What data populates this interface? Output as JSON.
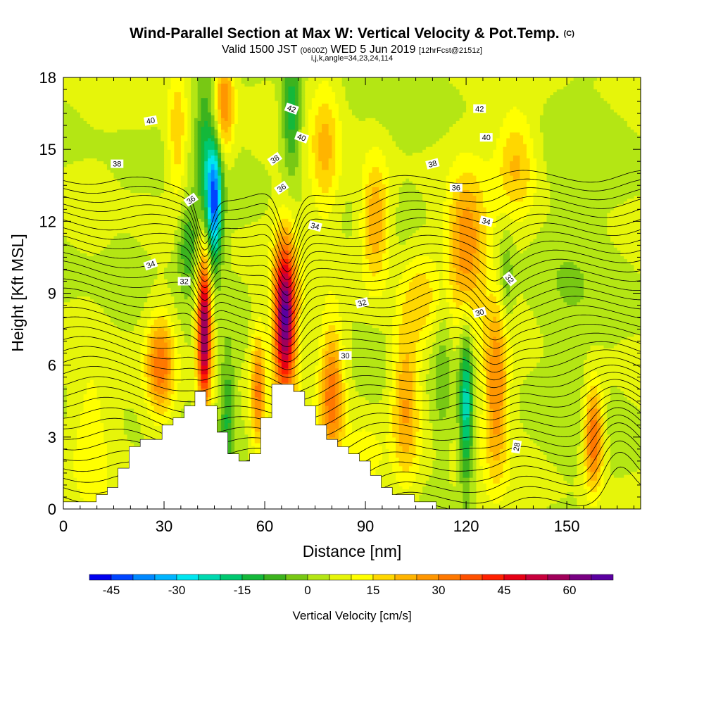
{
  "title": {
    "main": "Wind-Parallel Section at Max W: Vertical Velocity & Pot.Temp.",
    "copyright": "(C)",
    "valid_prefix": "Valid 1500 JST",
    "valid_utc": "(0600Z)",
    "valid_date": "WED 5 Jun 2019",
    "forecast": "[12hrFcst@2151z]",
    "indices": "i,j,k,angle=34,23,24,114"
  },
  "chart_data": {
    "type": "heatmap",
    "xlabel": "Distance [nm]",
    "ylabel": "Height [Kft MSL]",
    "xlim": [
      0,
      172
    ],
    "ylim": [
      0,
      18
    ],
    "x_ticks": [
      0,
      30,
      60,
      90,
      120,
      150
    ],
    "y_ticks": [
      0,
      3,
      6,
      9,
      12,
      15,
      18
    ],
    "fill_field": "Vertical Velocity [cm/s]",
    "contour_field": "Potential Temperature",
    "colorbar": {
      "label": "Vertical Velocity [cm/s]",
      "min": -50,
      "max": 70,
      "step": 5,
      "tick_labels": [
        -45,
        -30,
        -15,
        0,
        15,
        30,
        45,
        60
      ],
      "colors": [
        "#0000ee",
        "#0044ff",
        "#0088ff",
        "#00b4ff",
        "#00e6f0",
        "#00d9b0",
        "#00c870",
        "#14b83a",
        "#3cb31e",
        "#78c814",
        "#b4e614",
        "#e6f50a",
        "#ffff00",
        "#ffd700",
        "#ffb400",
        "#ff9600",
        "#ff7800",
        "#ff5000",
        "#ff2000",
        "#e60014",
        "#c8003c",
        "#a0005a",
        "#780082",
        "#5a00a0"
      ]
    },
    "cells": [
      {
        "x": 42,
        "y": 7.5,
        "sx": 1.5,
        "sy": 2.2,
        "v": 60
      },
      {
        "x": 66,
        "y": 8.0,
        "sx": 2.3,
        "sy": 2.2,
        "v": 62
      },
      {
        "x": 29,
        "y": 6.0,
        "sx": 3.0,
        "sy": 1.5,
        "v": 28
      },
      {
        "x": 58,
        "y": 5.0,
        "sx": 1.5,
        "sy": 1.8,
        "v": 25
      },
      {
        "x": 80,
        "y": 4.8,
        "sx": 2.5,
        "sy": 2.0,
        "v": 28
      },
      {
        "x": 102,
        "y": 4.5,
        "sx": 3.0,
        "sy": 2.5,
        "v": 22
      },
      {
        "x": 93,
        "y": 12.0,
        "sx": 3.0,
        "sy": 1.8,
        "v": 22
      },
      {
        "x": 120,
        "y": 11.0,
        "sx": 4.0,
        "sy": 2.0,
        "v": 25
      },
      {
        "x": 129,
        "y": 5.0,
        "sx": 2.5,
        "sy": 2.5,
        "v": 25
      },
      {
        "x": 158,
        "y": 3.0,
        "sx": 2.0,
        "sy": 1.5,
        "v": 33
      },
      {
        "x": 48,
        "y": 17.0,
        "sx": 2.0,
        "sy": 1.5,
        "v": 25
      },
      {
        "x": 34,
        "y": 15.5,
        "sx": 2.0,
        "sy": 2.0,
        "v": 15
      },
      {
        "x": 78,
        "y": 15.0,
        "sx": 3.0,
        "sy": 2.0,
        "v": 15
      },
      {
        "x": 135,
        "y": 14.5,
        "sx": 4.0,
        "sy": 1.5,
        "v": 15
      },
      {
        "x": 45,
        "y": 12.8,
        "sx": 1.6,
        "sy": 1.8,
        "v": -45
      },
      {
        "x": 42,
        "y": 15.0,
        "sx": 1.8,
        "sy": 2.5,
        "v": -15
      },
      {
        "x": 37,
        "y": 11.0,
        "sx": 2.0,
        "sy": 1.2,
        "v": -15
      },
      {
        "x": 49,
        "y": 4.0,
        "sx": 1.5,
        "sy": 1.8,
        "v": -15
      },
      {
        "x": 68,
        "y": 16.5,
        "sx": 2.0,
        "sy": 1.8,
        "v": -20
      },
      {
        "x": 120,
        "y": 4.2,
        "sx": 1.4,
        "sy": 2.3,
        "v": -28
      },
      {
        "x": 113,
        "y": 6.0,
        "sx": 2.0,
        "sy": 2.5,
        "v": -8
      },
      {
        "x": 132,
        "y": 9.5,
        "sx": 1.5,
        "sy": 1.5,
        "v": -10
      },
      {
        "x": 18,
        "y": 10.0,
        "sx": 5.0,
        "sy": 3.0,
        "v": -3
      },
      {
        "x": 150,
        "y": 9.0,
        "sx": 6.0,
        "sy": 3.5,
        "v": -3
      },
      {
        "x": 8,
        "y": 3.0,
        "sx": 4.0,
        "sy": 2.0,
        "v": 8
      },
      {
        "x": 90,
        "y": 2.0,
        "sx": 4.0,
        "sy": 1.0,
        "v": 10
      },
      {
        "x": 107,
        "y": 9.0,
        "sx": 4.0,
        "sy": 1.5,
        "v": 12
      }
    ],
    "terrain": [
      [
        0,
        0.3
      ],
      [
        9.8,
        0.3
      ],
      [
        9.8,
        0.6
      ],
      [
        13.1,
        0.6
      ],
      [
        13.1,
        0.9
      ],
      [
        16.3,
        0.9
      ],
      [
        16.3,
        1.7
      ],
      [
        19.6,
        1.7
      ],
      [
        19.6,
        2.6
      ],
      [
        22.9,
        2.6
      ],
      [
        22.9,
        2.9
      ],
      [
        29.4,
        2.9
      ],
      [
        29.4,
        3.5
      ],
      [
        32.7,
        3.5
      ],
      [
        32.7,
        3.8
      ],
      [
        36.0,
        3.8
      ],
      [
        36.0,
        4.3
      ],
      [
        39.2,
        4.3
      ],
      [
        39.2,
        4.9
      ],
      [
        42.5,
        4.9
      ],
      [
        42.5,
        4.3
      ],
      [
        45.8,
        4.3
      ],
      [
        45.8,
        3.2
      ],
      [
        49.0,
        3.2
      ],
      [
        49.0,
        2.3
      ],
      [
        52.3,
        2.3
      ],
      [
        52.3,
        2.0
      ],
      [
        55.5,
        2.0
      ],
      [
        55.5,
        2.3
      ],
      [
        58.8,
        2.3
      ],
      [
        58.8,
        3.8
      ],
      [
        62.1,
        3.8
      ],
      [
        62.1,
        5.2
      ],
      [
        68.6,
        5.2
      ],
      [
        68.6,
        4.9
      ],
      [
        71.9,
        4.9
      ],
      [
        71.9,
        4.3
      ],
      [
        75.2,
        4.3
      ],
      [
        75.2,
        3.5
      ],
      [
        78.4,
        3.5
      ],
      [
        78.4,
        2.9
      ],
      [
        81.7,
        2.9
      ],
      [
        81.7,
        2.6
      ],
      [
        85.0,
        2.6
      ],
      [
        85.0,
        2.3
      ],
      [
        88.2,
        2.3
      ],
      [
        88.2,
        2.0
      ],
      [
        91.5,
        2.0
      ],
      [
        91.5,
        1.4
      ],
      [
        94.7,
        1.4
      ],
      [
        94.7,
        0.9
      ],
      [
        98.0,
        0.9
      ],
      [
        98.0,
        0.6
      ],
      [
        104.6,
        0.6
      ],
      [
        104.6,
        0.3
      ],
      [
        111.1,
        0.3
      ],
      [
        111.1,
        0.0
      ],
      [
        0,
        0.0
      ]
    ],
    "contour_levels": [
      28,
      30,
      32,
      34,
      36,
      38,
      40,
      42
    ],
    "contour_labels": [
      {
        "text": "40",
        "x": 26,
        "y": 16.2,
        "angle": -10
      },
      {
        "text": "38",
        "x": 16,
        "y": 14.4,
        "angle": 0
      },
      {
        "text": "36",
        "x": 38,
        "y": 12.9,
        "angle": -35
      },
      {
        "text": "34",
        "x": 26,
        "y": 10.2,
        "angle": -20
      },
      {
        "text": "32",
        "x": 36,
        "y": 9.5,
        "angle": 0
      },
      {
        "text": "42",
        "x": 68,
        "y": 16.7,
        "angle": 20
      },
      {
        "text": "40",
        "x": 71,
        "y": 15.5,
        "angle": 20
      },
      {
        "text": "38",
        "x": 63,
        "y": 14.6,
        "angle": -35
      },
      {
        "text": "36",
        "x": 65,
        "y": 13.4,
        "angle": -35
      },
      {
        "text": "34",
        "x": 75,
        "y": 11.8,
        "angle": 15
      },
      {
        "text": "32",
        "x": 89,
        "y": 8.6,
        "angle": -15
      },
      {
        "text": "30",
        "x": 84,
        "y": 6.4,
        "angle": 0
      },
      {
        "text": "42",
        "x": 124,
        "y": 16.7,
        "angle": 0
      },
      {
        "text": "40",
        "x": 126,
        "y": 15.5,
        "angle": 0
      },
      {
        "text": "38",
        "x": 110,
        "y": 14.4,
        "angle": -15
      },
      {
        "text": "36",
        "x": 117,
        "y": 13.4,
        "angle": 0
      },
      {
        "text": "34",
        "x": 126,
        "y": 12.0,
        "angle": 15
      },
      {
        "text": "32",
        "x": 133,
        "y": 9.6,
        "angle": 50
      },
      {
        "text": "30",
        "x": 124,
        "y": 8.2,
        "angle": -15
      },
      {
        "text": "28",
        "x": 135,
        "y": 2.6,
        "angle": -80
      }
    ]
  }
}
